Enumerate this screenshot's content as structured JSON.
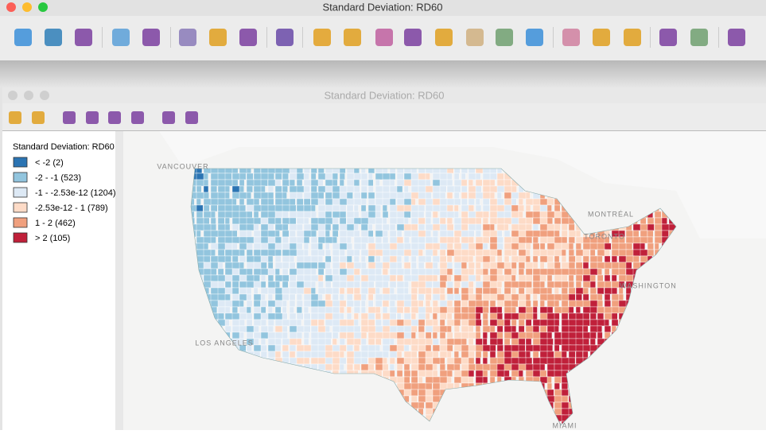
{
  "windows": [
    {
      "title": "Standard Deviation: RD60"
    },
    {
      "title": "Standard Deviation: RD60"
    }
  ],
  "legend": {
    "title": "Standard Deviation: RD60",
    "items": [
      {
        "label": "< -2 (2)",
        "color": "#2b74b3"
      },
      {
        "label": "-2 - -1 (523)",
        "color": "#92c5de"
      },
      {
        "label": "-1 - -2.53e-12 (1204)",
        "color": "#dde9f5"
      },
      {
        "label": "-2.53e-12 - 1 (789)",
        "color": "#fddbc7"
      },
      {
        "label": "1 - 2 (462)",
        "color": "#f0a07e"
      },
      {
        "label": "> 2 (105)",
        "color": "#c0203a"
      }
    ]
  },
  "map_labels": [
    "VANCOUVER",
    "MONTRÉAL",
    "TORONTO",
    "WASHINGTON",
    "LOS ANGELES",
    "MIAMI"
  ]
}
